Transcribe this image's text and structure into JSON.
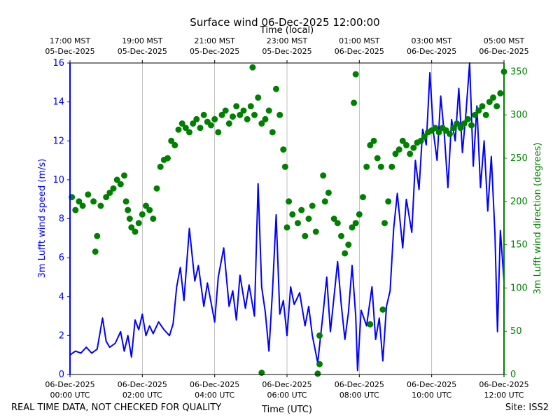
{
  "chart_data": {
    "type": "line+scatter",
    "title": "Surface wind 06-Dec-2025 12:00:00",
    "xlabel_bottom": "Time (UTC)",
    "xlabel_top": "Time (local)",
    "ylabel_left": "3m Lufft wind speed (m/s)",
    "ylabel_right": "3m Lufft wind direction (degrees)",
    "xlim_hours_utc": [
      0,
      12
    ],
    "ylim_left": [
      0,
      16
    ],
    "ylim_right": [
      0,
      360
    ],
    "grid": "vertical",
    "bottom_ticks": [
      {
        "hour": 0,
        "date": "06-Dec-2025",
        "time": "00:00 UTC"
      },
      {
        "hour": 2,
        "date": "06-Dec-2025",
        "time": "02:00 UTC"
      },
      {
        "hour": 4,
        "date": "06-Dec-2025",
        "time": "04:00 UTC"
      },
      {
        "hour": 6,
        "date": "06-Dec-2025",
        "time": "06:00 UTC"
      },
      {
        "hour": 8,
        "date": "06-Dec-2025",
        "time": "08:00 UTC"
      },
      {
        "hour": 10,
        "date": "06-Dec-2025",
        "time": "10:00 UTC"
      },
      {
        "hour": 12,
        "date": "06-Dec-2025",
        "time": "12:00 UTC"
      }
    ],
    "top_ticks": [
      {
        "hour": 0,
        "time": "17:00 MST",
        "date": "05-Dec-2025"
      },
      {
        "hour": 2,
        "time": "19:00 MST",
        "date": "05-Dec-2025"
      },
      {
        "hour": 4,
        "time": "21:00 MST",
        "date": "05-Dec-2025"
      },
      {
        "hour": 6,
        "time": "23:00 MST",
        "date": "05-Dec-2025"
      },
      {
        "hour": 8,
        "time": "01:00 MST",
        "date": "06-Dec-2025"
      },
      {
        "hour": 10,
        "time": "03:00 MST",
        "date": "06-Dec-2025"
      },
      {
        "hour": 12,
        "time": "05:00 MST",
        "date": "06-Dec-2025"
      }
    ],
    "left_ticks": [
      0,
      2,
      4,
      6,
      8,
      10,
      12,
      14,
      16
    ],
    "right_ticks": [
      0,
      50,
      100,
      150,
      200,
      250,
      300,
      350
    ],
    "series": [
      {
        "name": "wind speed",
        "axis": "left",
        "style": "line",
        "color": "#0000ff",
        "points": [
          [
            0.0,
            1.0
          ],
          [
            0.15,
            1.2
          ],
          [
            0.3,
            1.1
          ],
          [
            0.45,
            1.4
          ],
          [
            0.6,
            1.1
          ],
          [
            0.75,
            1.3
          ],
          [
            0.9,
            2.9
          ],
          [
            1.0,
            1.7
          ],
          [
            1.1,
            1.4
          ],
          [
            1.25,
            1.6
          ],
          [
            1.4,
            2.2
          ],
          [
            1.5,
            1.2
          ],
          [
            1.6,
            2.0
          ],
          [
            1.7,
            0.9
          ],
          [
            1.8,
            2.8
          ],
          [
            1.9,
            2.3
          ],
          [
            2.0,
            3.1
          ],
          [
            2.1,
            2.0
          ],
          [
            2.2,
            2.5
          ],
          [
            2.3,
            2.1
          ],
          [
            2.45,
            2.7
          ],
          [
            2.6,
            2.3
          ],
          [
            2.75,
            2.0
          ],
          [
            2.85,
            2.6
          ],
          [
            2.95,
            4.5
          ],
          [
            3.05,
            5.5
          ],
          [
            3.15,
            3.8
          ],
          [
            3.3,
            7.5
          ],
          [
            3.45,
            4.8
          ],
          [
            3.55,
            5.6
          ],
          [
            3.7,
            3.5
          ],
          [
            3.8,
            4.7
          ],
          [
            3.9,
            3.7
          ],
          [
            4.0,
            2.7
          ],
          [
            4.1,
            5.0
          ],
          [
            4.25,
            6.5
          ],
          [
            4.4,
            3.5
          ],
          [
            4.5,
            4.3
          ],
          [
            4.6,
            2.8
          ],
          [
            4.7,
            5.1
          ],
          [
            4.85,
            3.4
          ],
          [
            4.95,
            4.6
          ],
          [
            5.1,
            3.0
          ],
          [
            5.2,
            9.8
          ],
          [
            5.3,
            4.5
          ],
          [
            5.4,
            3.2
          ],
          [
            5.5,
            1.2
          ],
          [
            5.6,
            4.3
          ],
          [
            5.7,
            8.2
          ],
          [
            5.8,
            3.1
          ],
          [
            5.9,
            3.8
          ],
          [
            6.0,
            2.0
          ],
          [
            6.1,
            4.5
          ],
          [
            6.2,
            3.6
          ],
          [
            6.35,
            4.2
          ],
          [
            6.5,
            2.5
          ],
          [
            6.6,
            3.5
          ],
          [
            6.7,
            2.0
          ],
          [
            6.85,
            0.6
          ],
          [
            7.0,
            3.2
          ],
          [
            7.1,
            5.0
          ],
          [
            7.2,
            2.2
          ],
          [
            7.3,
            4.0
          ],
          [
            7.4,
            5.8
          ],
          [
            7.5,
            3.6
          ],
          [
            7.6,
            1.8
          ],
          [
            7.7,
            3.2
          ],
          [
            7.8,
            5.6
          ],
          [
            7.9,
            3.0
          ],
          [
            7.95,
            0.2
          ],
          [
            8.05,
            3.3
          ],
          [
            8.2,
            2.5
          ],
          [
            8.35,
            4.5
          ],
          [
            8.45,
            1.8
          ],
          [
            8.55,
            2.9
          ],
          [
            8.65,
            0.7
          ],
          [
            8.75,
            3.5
          ],
          [
            8.85,
            4.3
          ],
          [
            8.95,
            7.5
          ],
          [
            9.05,
            9.3
          ],
          [
            9.2,
            6.5
          ],
          [
            9.3,
            9.0
          ],
          [
            9.45,
            7.3
          ],
          [
            9.55,
            11.0
          ],
          [
            9.65,
            9.5
          ],
          [
            9.75,
            12.6
          ],
          [
            9.85,
            11.8
          ],
          [
            9.95,
            15.5
          ],
          [
            10.05,
            12.4
          ],
          [
            10.15,
            11.0
          ],
          [
            10.25,
            14.3
          ],
          [
            10.35,
            12.3
          ],
          [
            10.45,
            9.6
          ],
          [
            10.55,
            13.1
          ],
          [
            10.65,
            12.0
          ],
          [
            10.75,
            14.7
          ],
          [
            10.85,
            11.4
          ],
          [
            10.95,
            13.5
          ],
          [
            11.05,
            16.0
          ],
          [
            11.15,
            10.7
          ],
          [
            11.25,
            13.8
          ],
          [
            11.35,
            9.6
          ],
          [
            11.45,
            12.0
          ],
          [
            11.55,
            8.4
          ],
          [
            11.65,
            11.2
          ],
          [
            11.75,
            7.2
          ],
          [
            11.82,
            2.2
          ],
          [
            11.9,
            7.4
          ],
          [
            12.0,
            4.8
          ]
        ]
      },
      {
        "name": "wind direction",
        "axis": "right",
        "style": "markers",
        "color": "#008000",
        "points": [
          [
            0.05,
            205
          ],
          [
            0.15,
            190
          ],
          [
            0.25,
            200
          ],
          [
            0.35,
            195
          ],
          [
            0.5,
            208
          ],
          [
            0.65,
            200
          ],
          [
            0.7,
            142
          ],
          [
            0.75,
            160
          ],
          [
            0.85,
            195
          ],
          [
            1.0,
            205
          ],
          [
            1.1,
            210
          ],
          [
            1.2,
            215
          ],
          [
            1.3,
            225
          ],
          [
            1.4,
            220
          ],
          [
            1.5,
            230
          ],
          [
            1.55,
            200
          ],
          [
            1.6,
            190
          ],
          [
            1.65,
            180
          ],
          [
            1.7,
            170
          ],
          [
            1.8,
            165
          ],
          [
            1.9,
            175
          ],
          [
            2.0,
            185
          ],
          [
            2.1,
            195
          ],
          [
            2.2,
            190
          ],
          [
            2.3,
            180
          ],
          [
            2.4,
            215
          ],
          [
            2.5,
            240
          ],
          [
            2.6,
            248
          ],
          [
            2.7,
            250
          ],
          [
            2.8,
            270
          ],
          [
            2.9,
            265
          ],
          [
            3.0,
            283
          ],
          [
            3.1,
            290
          ],
          [
            3.2,
            285
          ],
          [
            3.3,
            280
          ],
          [
            3.4,
            290
          ],
          [
            3.5,
            295
          ],
          [
            3.6,
            285
          ],
          [
            3.7,
            300
          ],
          [
            3.8,
            292
          ],
          [
            3.9,
            288
          ],
          [
            4.0,
            295
          ],
          [
            4.1,
            280
          ],
          [
            4.2,
            300
          ],
          [
            4.3,
            305
          ],
          [
            4.4,
            290
          ],
          [
            4.5,
            298
          ],
          [
            4.6,
            310
          ],
          [
            4.7,
            300
          ],
          [
            4.8,
            305
          ],
          [
            4.9,
            295
          ],
          [
            5.0,
            310
          ],
          [
            5.1,
            300
          ],
          [
            5.2,
            320
          ],
          [
            5.3,
            290
          ],
          [
            5.4,
            295
          ],
          [
            5.5,
            305
          ],
          [
            5.6,
            280
          ],
          [
            5.7,
            330
          ],
          [
            5.8,
            300
          ],
          [
            5.9,
            260
          ],
          [
            5.95,
            240
          ],
          [
            6.0,
            170
          ],
          [
            6.05,
            200
          ],
          [
            6.15,
            185
          ],
          [
            6.3,
            175
          ],
          [
            6.4,
            190
          ],
          [
            6.5,
            160
          ],
          [
            6.6,
            180
          ],
          [
            6.7,
            195
          ],
          [
            6.8,
            165
          ],
          [
            6.9,
            45
          ],
          [
            7.0,
            230
          ],
          [
            7.05,
            200
          ],
          [
            7.15,
            210
          ],
          [
            7.3,
            180
          ],
          [
            7.4,
            175
          ],
          [
            7.5,
            160
          ],
          [
            7.6,
            140
          ],
          [
            7.7,
            150
          ],
          [
            7.8,
            170
          ],
          [
            7.9,
            175
          ],
          [
            8.0,
            185
          ],
          [
            8.1,
            205
          ],
          [
            8.2,
            240
          ],
          [
            8.3,
            265
          ],
          [
            8.4,
            270
          ],
          [
            8.5,
            250
          ],
          [
            8.6,
            240
          ],
          [
            8.7,
            175
          ],
          [
            8.8,
            200
          ],
          [
            8.9,
            240
          ],
          [
            9.0,
            255
          ],
          [
            9.1,
            260
          ],
          [
            9.2,
            270
          ],
          [
            9.3,
            265
          ],
          [
            9.4,
            255
          ],
          [
            9.5,
            262
          ],
          [
            9.6,
            268
          ],
          [
            9.7,
            270
          ],
          [
            9.8,
            275
          ],
          [
            9.9,
            280
          ],
          [
            10.0,
            282
          ],
          [
            10.1,
            285
          ],
          [
            10.2,
            280
          ],
          [
            10.3,
            285
          ],
          [
            10.4,
            282
          ],
          [
            10.5,
            278
          ],
          [
            10.6,
            285
          ],
          [
            10.7,
            290
          ],
          [
            10.8,
            285
          ],
          [
            10.9,
            290
          ],
          [
            11.0,
            295
          ],
          [
            11.1,
            288
          ],
          [
            11.2,
            300
          ],
          [
            11.3,
            305
          ],
          [
            11.4,
            310
          ],
          [
            11.5,
            300
          ],
          [
            11.6,
            315
          ],
          [
            11.7,
            320
          ],
          [
            11.8,
            310
          ],
          [
            11.9,
            325
          ],
          [
            12.0,
            350
          ],
          [
            5.3,
            2
          ],
          [
            5.05,
            355
          ],
          [
            6.85,
            1
          ],
          [
            6.9,
            12
          ],
          [
            8.3,
            58
          ],
          [
            8.65,
            75
          ],
          [
            7.85,
            314
          ],
          [
            7.9,
            347
          ]
        ]
      }
    ]
  },
  "footer": {
    "left": "REAL TIME DATA, NOT CHECKED FOR QUALITY",
    "right": "Site: ISS2"
  }
}
